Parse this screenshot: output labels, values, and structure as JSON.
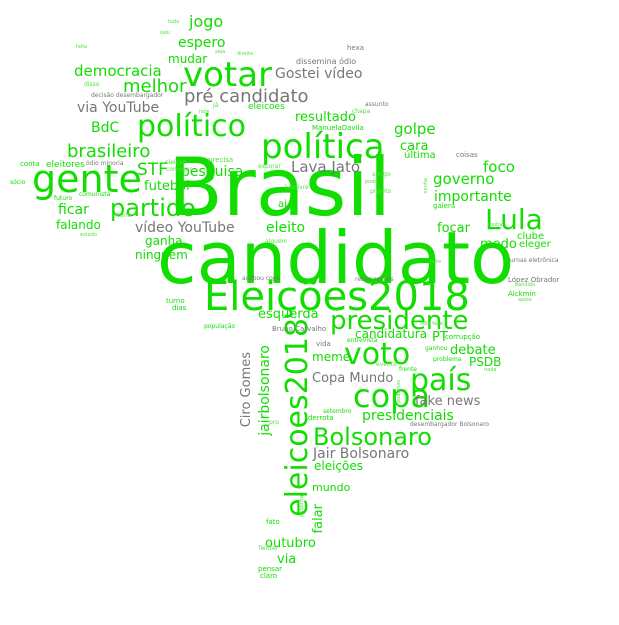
{
  "title": "Eleições 2018 word cloud",
  "colors": {
    "primary": "#11dd00",
    "secondary": "#777777",
    "background": "#ffffff"
  },
  "words": {
    "brasil": "Brasil",
    "candidato": "candidato",
    "eleicoes2018_h": "Eleições2018",
    "eleicoes2018_v": "eleicoes2018",
    "presidente": "presidente",
    "voto": "voto",
    "pais": "país",
    "copa": "copa",
    "bolsonaro": "Bolsonaro",
    "politica": "política",
    "politico": "político",
    "votar": "votar",
    "gente": "gente",
    "partido": "partido",
    "lula": "Lula",
    "brasileiro": "brasileiro",
    "pre_candidato": "pré candidato",
    "gostei_video": "Gostei vídeo",
    "democracia": "democracia",
    "melhor": "melhor",
    "jogo": "jogo",
    "espero": "espero",
    "mudar": "mudar",
    "via_youtube": "via YouTube",
    "bdc": "BdC",
    "resultado": "resultado",
    "golpe": "golpe",
    "pesquisa": "pesquisa",
    "stf": "STF",
    "futebol": "futebol",
    "ficar": "ficar",
    "falando": "falando",
    "video_youtube": "vídeo YouTube",
    "eleito": "eleito",
    "ganha": "ganha",
    "ninguem": "ninguém",
    "lava_jato": "Lava Jato",
    "cara": "cara",
    "ultima": "última",
    "foco": "foco",
    "governo": "governo",
    "importante": "importante",
    "medo": "medo",
    "focar": "focar",
    "esquerda": "esquerda",
    "candidatura": "candidatura",
    "pt": "PT",
    "debate": "debate",
    "psdb": "PSDB",
    "meme": "meme",
    "copa_mundo": "Copa Mundo",
    "fake_news": "fake news",
    "presidenciais": "presidenciais",
    "jair_bolsonaro": "Jair Bolsonaro",
    "eleicoes": "eleições",
    "mundo": "mundo",
    "falar": "falar",
    "outubro": "outubro",
    "via": "via",
    "ciro_gomes": "Ciro Gomes",
    "jairbolsonaro": "jairbolsonaro",
    "dissemina_odio": "dissemina ódio",
    "hexa": "hexa",
    "eleicoes_small": "eleicoes",
    "ai": "ai",
    "clube": "clube",
    "eleger": "eleger",
    "corrupcao": "corrupção",
    "vida": "vida",
    "bruno_carvalho": "Bruno Carvalho",
    "redes_sociais": "redes sociais",
    "lopez_obrador": "López Obrador",
    "alckmin": "Alckmin",
    "acabou_copa": "acabou copa",
    "turno": "turno",
    "dias": "dias",
    "populacao": "população",
    "eleitores": "eleitores",
    "conta": "conta",
    "precisa": "precisa",
    "esporar": "esporar",
    "amigo": "amigo",
    "galera": "galera",
    "coisas": "coisas",
    "assunto": "assunto",
    "chapa": "chapa",
    "manueladavila": "ManuelaDavila",
    "projeto": "projeto",
    "evento": "evento",
    "problema": "problema",
    "ganhou": "ganhou",
    "frente": "frente",
    "entrevista": "entrevista",
    "derrota": "derrota",
    "setembro": "setembro",
    "desembargador_bolsonaro": "desembargador Bolsonaro",
    "fato": "fato",
    "pensar": "pensar",
    "claro": "claro",
    "twitter": "Twitter",
    "urnas_eletronica": "urnas eletrônica",
    "odio_minoria": "ódio minoria",
    "decisao_desembargador": "decisão desembargador",
    "comunista": "comunista",
    "futuro": "futuro",
    "socio": "sócio",
    "vitoria": "vitória",
    "eleicao": "eleição",
    "comecar": "começar",
    "estado": "estado",
    "disso": "disso",
    "ja": "já",
    "bandido": "bandido",
    "pro": "pro",
    "proposta": "proposta",
    "lulalivre": "lulalivre",
    "muita": "muita",
    "tudo": "tudo",
    "seja": "seja",
    "saiu": "saiu",
    "falta": "falta",
    "alguem": "alguém",
    "podemos": "podemos",
    "odio_fake": "ódio fake",
    "pode": "pode",
    "jeito": "jeito",
    "apoio": "apoio",
    "nada": "nada",
    "venha": "venha",
    "direita": "direita",
    "hoje": "hoje",
    "ano": "ano"
  }
}
